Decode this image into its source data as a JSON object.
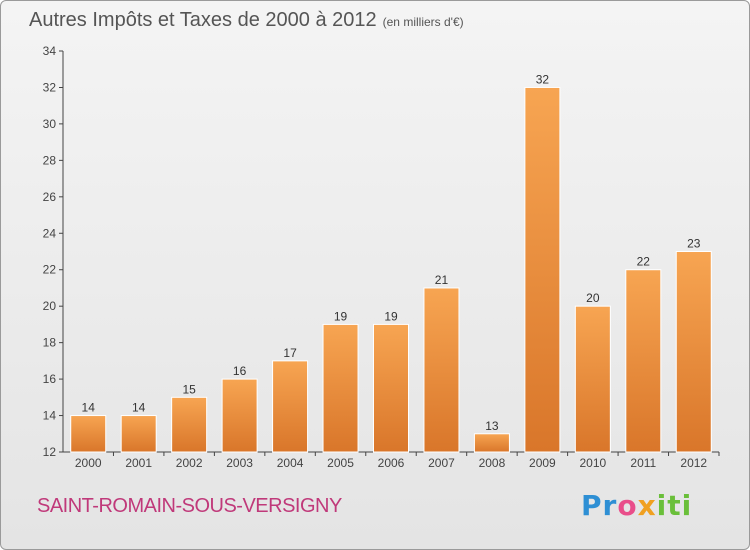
{
  "title": {
    "main": "Autres Impôts et Taxes de 2000 à 2012",
    "unit": "(en milliers d'€)"
  },
  "commune": "SAINT-ROMAIN-SOUS-VERSIGNY",
  "logo": {
    "p1": "Pr",
    "p2": "o",
    "p3": "x",
    "p4": "iti"
  },
  "colors": {
    "bar_light": "#f7a552",
    "bar_dark": "#d9762a",
    "commune": "#c0397a"
  },
  "chart_data": {
    "type": "bar",
    "title": "Autres Impôts et Taxes de 2000 à 2012",
    "subtitle": "(en milliers d'€)",
    "categories": [
      "2000",
      "2001",
      "2002",
      "2003",
      "2004",
      "2005",
      "2006",
      "2007",
      "2008",
      "2009",
      "2010",
      "2011",
      "2012"
    ],
    "values": [
      14,
      14,
      15,
      16,
      17,
      19,
      19,
      21,
      13,
      32,
      20,
      22,
      23
    ],
    "ylim": [
      12,
      34
    ],
    "yticks": [
      12,
      14,
      16,
      18,
      20,
      22,
      24,
      26,
      28,
      30,
      32,
      34
    ],
    "grid": false,
    "legend": "none"
  }
}
